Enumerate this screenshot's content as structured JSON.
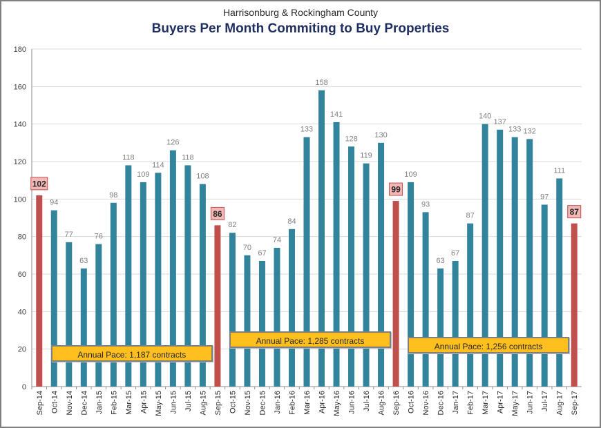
{
  "chart_data": {
    "type": "bar",
    "subtitle": "Harrisonburg & Rockingham County",
    "title": "Buyers Per Month Commiting to Buy Properties",
    "xlabel": "",
    "ylabel": "",
    "ylim": [
      0,
      180
    ],
    "yticks": [
      0,
      20,
      40,
      60,
      80,
      100,
      120,
      140,
      160,
      180
    ],
    "grid": true,
    "categories": [
      "Sep-14",
      "Oct-14",
      "Nov-14",
      "Dec-14",
      "Jan-15",
      "Feb-15",
      "Mar-15",
      "Apr-15",
      "May-15",
      "Jun-15",
      "Jul-15",
      "Aug-15",
      "Sep-15",
      "Oct-15",
      "Nov-15",
      "Dec-15",
      "Jan-16",
      "Feb-16",
      "Mar-16",
      "Apr-16",
      "May-16",
      "Jun-16",
      "Jul-16",
      "Aug-16",
      "Sep-16",
      "Oct-16",
      "Nov-16",
      "Dec-16",
      "Jan-17",
      "Feb-17",
      "Mar-17",
      "Apr-17",
      "May-17",
      "Jun-17",
      "Jul-17",
      "Aug-17",
      "Sep-17"
    ],
    "values": [
      102,
      94,
      77,
      63,
      76,
      98,
      118,
      109,
      114,
      126,
      118,
      108,
      86,
      82,
      70,
      67,
      74,
      84,
      133,
      158,
      141,
      128,
      119,
      130,
      99,
      109,
      93,
      63,
      67,
      87,
      140,
      137,
      133,
      132,
      97,
      111,
      87
    ],
    "highlighted_categories": [
      "Sep-14",
      "Sep-15",
      "Sep-16",
      "Sep-17"
    ],
    "colors": {
      "bar": "#31849b",
      "highlight_bar": "#c0504d",
      "highlight_label_fill": "#f2b8b7",
      "highlight_label_border": "#c0504d",
      "annotation_fill": "#ffbf1e",
      "grid": "#d9d9d9"
    },
    "annotations": [
      {
        "text": "Annual Pace: 1,187 contracts",
        "from": "Oct-14",
        "to": "Aug-15"
      },
      {
        "text": "Annual Pace: 1,285 contracts",
        "from": "Oct-15",
        "to": "Aug-16"
      },
      {
        "text": "Annual Pace: 1,256 contracts",
        "from": "Oct-16",
        "to": "Aug-17"
      }
    ]
  }
}
